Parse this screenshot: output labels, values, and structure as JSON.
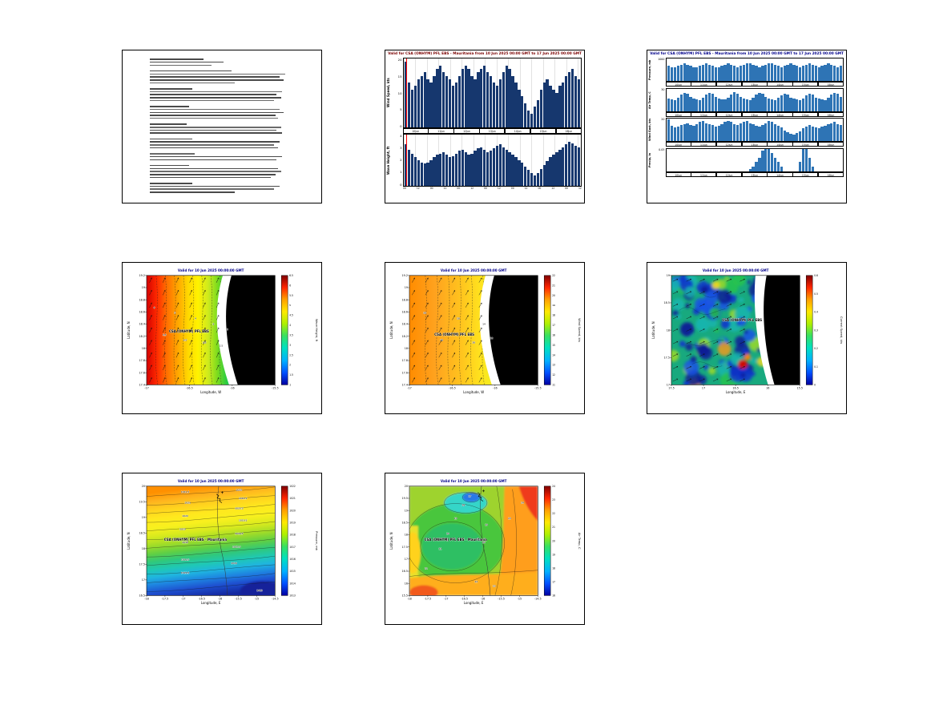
{
  "page": {
    "background": "#ffffff"
  },
  "colors": {
    "timeseries_bar": "#16376e",
    "meteogram_bar": "#2e74b5",
    "time_marker": "#ff0000",
    "map_title": "#00008b",
    "land": "#000000"
  },
  "forecast_text_panel": {
    "text_legible": false,
    "line_count": 46
  },
  "chart_data": [
    {
      "id": "wind-wave-timeseries",
      "type": "bar",
      "title": "Valid for CSA (ONHYM) PFL EBS - Mauritania from 10 Jun 2025 00:00 GMT to 17 Jun 2025 00:00 GMT",
      "dates": [
        "10Jun",
        "11Jun",
        "12Jun",
        "13Jun",
        "14Jun",
        "15Jun",
        "16Jun"
      ],
      "hour_ticks": [
        "00",
        "12",
        "00",
        "12",
        "00",
        "12",
        "00",
        "12",
        "00",
        "12",
        "00",
        "12",
        "00",
        "12"
      ],
      "panels": [
        {
          "ylabel": "Wind Speed, kts",
          "ylim": [
            0,
            20
          ],
          "yticks": [
            "20",
            "15",
            "10",
            "5",
            "0"
          ],
          "values": [
            19,
            13,
            11,
            12,
            14,
            15,
            16,
            14,
            13,
            15,
            17,
            18,
            16,
            15,
            14,
            12,
            13,
            15,
            17,
            18,
            17,
            15,
            14,
            16,
            17,
            18,
            16,
            15,
            13,
            12,
            14,
            16,
            18,
            17,
            15,
            13,
            11,
            9,
            7,
            5,
            4,
            6,
            8,
            11,
            13,
            14,
            12,
            11,
            10,
            12,
            13,
            15,
            16,
            17,
            15,
            14
          ]
        },
        {
          "ylabel": "Wave Height, ft",
          "ylim": [
            0,
            4
          ],
          "yticks": [
            "4",
            "3",
            "2",
            "1",
            "0"
          ],
          "values": [
            3.2,
            2.8,
            2.5,
            2.2,
            2.0,
            1.8,
            1.7,
            1.8,
            2.0,
            2.2,
            2.4,
            2.5,
            2.6,
            2.4,
            2.2,
            2.3,
            2.5,
            2.7,
            2.8,
            2.6,
            2.4,
            2.5,
            2.7,
            2.9,
            3.0,
            2.8,
            2.6,
            2.7,
            2.9,
            3.1,
            3.2,
            3.0,
            2.8,
            2.6,
            2.4,
            2.2,
            2.0,
            1.8,
            1.5,
            1.2,
            1.0,
            0.8,
            1.0,
            1.3,
            1.6,
            1.9,
            2.2,
            2.4,
            2.6,
            2.8,
            3.0,
            3.2,
            3.4,
            3.3,
            3.1,
            3.0
          ]
        }
      ]
    },
    {
      "id": "meteogram",
      "type": "bar",
      "title": "Valid for CSA (ONHYM) PFL EBS - Mauritania from 10 Jun 2025 00:00 GMT to 17 Jun 2025 00:00 GMT",
      "dates": [
        "10Jun",
        "11Jun",
        "12Jun",
        "13Jun",
        "14Jun",
        "15Jun",
        "16Jun"
      ],
      "panels": [
        {
          "ylabel": "Pressure, mb",
          "ylim": [
            1000,
            1018
          ],
          "yticks": [
            "1000"
          ],
          "values": [
            1012,
            1011,
            1011,
            1012,
            1013,
            1014,
            1013,
            1012,
            1011,
            1011,
            1012,
            1013,
            1014,
            1013,
            1012,
            1011,
            1011,
            1012,
            1013,
            1014,
            1013,
            1012,
            1011,
            1012,
            1013,
            1014,
            1014,
            1013,
            1012,
            1011,
            1012,
            1013,
            1014,
            1014,
            1013,
            1012,
            1011,
            1012,
            1013,
            1014,
            1013,
            1012,
            1011,
            1012,
            1013,
            1014,
            1013,
            1012,
            1011,
            1012,
            1013,
            1014,
            1013,
            1012,
            1011,
            1012
          ]
        },
        {
          "ylabel": "Air Temp, C",
          "ylim": [
            10,
            35
          ],
          "yticks": [
            "30"
          ],
          "values": [
            24,
            23,
            22,
            25,
            28,
            30,
            29,
            26,
            24,
            23,
            22,
            25,
            28,
            30,
            29,
            26,
            24,
            23,
            23,
            25,
            28,
            31,
            29,
            26,
            24,
            23,
            22,
            25,
            28,
            30,
            29,
            26,
            24,
            23,
            22,
            25,
            27,
            29,
            28,
            25,
            24,
            23,
            22,
            24,
            27,
            29,
            28,
            25,
            24,
            23,
            22,
            25,
            28,
            30,
            29,
            26
          ]
        },
        {
          "ylabel": "Wind Gust, kts",
          "ylim": [
            0,
            25
          ],
          "yticks": [
            "20"
          ],
          "values": [
            24,
            17,
            15,
            16,
            18,
            19,
            20,
            18,
            17,
            19,
            21,
            22,
            20,
            19,
            18,
            16,
            17,
            19,
            21,
            22,
            21,
            19,
            18,
            20,
            21,
            22,
            20,
            19,
            17,
            16,
            18,
            20,
            22,
            21,
            19,
            17,
            15,
            12,
            10,
            8,
            7,
            9,
            11,
            14,
            16,
            18,
            16,
            15,
            14,
            16,
            17,
            19,
            20,
            21,
            19,
            18
          ]
        },
        {
          "ylabel": "Precip, in",
          "ylim": [
            0,
            0.05
          ],
          "yticks": [
            "0.05"
          ],
          "values": [
            0,
            0,
            0,
            0,
            0,
            0,
            0,
            0,
            0,
            0,
            0,
            0,
            0,
            0,
            0,
            0,
            0,
            0,
            0,
            0,
            0,
            0,
            0,
            0,
            0,
            0,
            0.005,
            0.01,
            0.02,
            0.03,
            0.045,
            0.05,
            0.05,
            0.04,
            0.03,
            0.02,
            0.01,
            0,
            0,
            0,
            0,
            0,
            0.02,
            0.05,
            0.05,
            0.03,
            0.01,
            0,
            0,
            0,
            0,
            0,
            0,
            0,
            0,
            0
          ]
        }
      ]
    },
    {
      "id": "wave-height-map",
      "type": "heatmap",
      "title": "Valid for 10 Jun 2025 00:00:00 GMT",
      "brand": {
        "text": "CSA (ONHYM) PFL EBS",
        "x": 0.33,
        "y": 0.52
      },
      "xlabel": "Longitude, W",
      "ylabel": "Latitude, N",
      "xticks": [
        "-17",
        "-16.5",
        "-16",
        "-15.5"
      ],
      "yticks": [
        "19.2",
        "19",
        "18.8",
        "18.6",
        "18.4",
        "18.2",
        "18",
        "17.8",
        "17.6",
        "17.4"
      ],
      "cblabel": "Wave Height, ft",
      "cbticks": [
        "6.5",
        "6",
        "5.5",
        "5",
        "4.5",
        "4",
        "3.5",
        "3",
        "2.5",
        "2",
        "1.5",
        "1"
      ],
      "range": [
        1,
        6.5
      ],
      "pattern": "wave height decreases from ~6.5 ft offshore (west, red) to ~1 ft near the coast (blue); black area = land",
      "contour_labels": [
        {
          "v": "6",
          "x": 0.06,
          "y": 0.3
        },
        {
          "v": "5.5",
          "x": 0.14,
          "y": 0.55
        },
        {
          "v": "5",
          "x": 0.22,
          "y": 0.35
        },
        {
          "v": "4.5",
          "x": 0.3,
          "y": 0.6
        },
        {
          "v": "4",
          "x": 0.38,
          "y": 0.4
        },
        {
          "v": "3.5",
          "x": 0.45,
          "y": 0.62
        },
        {
          "v": "3",
          "x": 0.52,
          "y": 0.45
        },
        {
          "v": "2.5",
          "x": 0.58,
          "y": 0.65
        },
        {
          "v": "2",
          "x": 0.63,
          "y": 0.5
        }
      ],
      "arrows": {
        "angle": -65,
        "max_x": 0.56
      }
    },
    {
      "id": "wind-speed-map",
      "type": "heatmap",
      "title": "Valid for 10 Jun 2025 00:00:00 GMT",
      "brand": {
        "text": "CSA (ONHYM) PFL EBS",
        "x": 0.35,
        "y": 0.55
      },
      "xlabel": "Longitude, W",
      "ylabel": "Latitude, N",
      "xticks": [
        "-17",
        "-16.5",
        "-16",
        "-15.5"
      ],
      "yticks": [
        "19.2",
        "19",
        "18.8",
        "18.6",
        "18.4",
        "18.2",
        "18",
        "17.8",
        "17.6",
        "17.4"
      ],
      "cblabel": "Wind Speed, kts",
      "cbticks": [
        "22",
        "21",
        "20",
        "19",
        "18",
        "17",
        "16",
        "15",
        "14",
        "13",
        "12",
        "11"
      ],
      "range": [
        11,
        22
      ],
      "pattern": "wind ~20-22 kts offshore (orange) easing to ~11-13 kts at the coast (cyan); black area = land",
      "contour_labels": [
        {
          "v": "20",
          "x": 0.12,
          "y": 0.35
        },
        {
          "v": "19",
          "x": 0.25,
          "y": 0.6
        },
        {
          "v": "18",
          "x": 0.38,
          "y": 0.4
        },
        {
          "v": "16",
          "x": 0.5,
          "y": 0.62
        },
        {
          "v": "14",
          "x": 0.58,
          "y": 0.45
        },
        {
          "v": "12",
          "x": 0.64,
          "y": 0.58
        }
      ],
      "arrows": {
        "angle": -60,
        "max_x": 0.56
      }
    },
    {
      "id": "current-speed-map",
      "type": "heatmap",
      "title": "Valid for 10 Jun 2025 00:00:00 GMT",
      "brand": {
        "text": "CSA (ONHYM) PFL EBS",
        "x": 0.55,
        "y": 0.42
      },
      "xlabel": "Longitude, E",
      "ylabel": "Latitude, N",
      "xticks": [
        "17.5",
        "17",
        "16.5",
        "16",
        "15.5"
      ],
      "yticks": [
        "19",
        "18.5",
        "18",
        "17.5",
        "17"
      ],
      "cblabel": "Current Speed, kts",
      "cbticks": [
        "0.6",
        "0.5",
        "0.4",
        "0.3",
        "0.2",
        "0.1",
        "0"
      ],
      "range": [
        0,
        0.6
      ],
      "pattern": "mottled current field, mostly 0-0.2 kts (blue/green) with ~0.5-0.6 kt hotspots (red) near the coast",
      "contour_labels": [],
      "arrows": {
        "angle": -25,
        "max_x": 0.64
      }
    },
    {
      "id": "pressure-map",
      "type": "heatmap",
      "title": "Valid for 10 Jun 2025 00:00:00 GMT",
      "brand": {
        "text": "CSA (ONHYM) PFL EBS  - Mauritania",
        "x": 0.38,
        "y": 0.5
      },
      "xlabel": "Longitude, E",
      "ylabel": "Latitude, N",
      "xticks": [
        "-18",
        "-17.5",
        "-17",
        "-16.5",
        "-16",
        "-15.5",
        "-15",
        "-14.5"
      ],
      "yticks": [
        "20",
        "19.5",
        "19",
        "18.5",
        "18",
        "17.5",
        "17",
        "16.5"
      ],
      "cblabel": "Pressure, mb",
      "cbticks": [
        "1022",
        "1021",
        "1020",
        "1019",
        "1018",
        "1017",
        "1016",
        "1015",
        "1014",
        "1013"
      ],
      "range": [
        1013,
        1022
      ],
      "pattern": "sea-level pressure bands from ~1022 mb in the north (orange) to ~1013 mb in the southeast (dark blue)",
      "contour_labels": [
        {
          "v": "1021.5",
          "x": 0.3,
          "y": 0.06
        },
        {
          "v": "1022",
          "x": 0.72,
          "y": 0.04
        },
        {
          "v": "1021.5",
          "x": 0.75,
          "y": 0.12
        },
        {
          "v": "1021",
          "x": 0.32,
          "y": 0.16
        },
        {
          "v": "1020.5",
          "x": 0.72,
          "y": 0.21
        },
        {
          "v": "1020",
          "x": 0.3,
          "y": 0.28
        },
        {
          "v": "1019.5",
          "x": 0.75,
          "y": 0.32
        },
        {
          "v": "1019",
          "x": 0.28,
          "y": 0.4
        },
        {
          "v": "1018.5",
          "x": 0.72,
          "y": 0.44
        },
        {
          "v": "1018",
          "x": 0.3,
          "y": 0.52
        },
        {
          "v": "1017.5",
          "x": 0.7,
          "y": 0.56
        },
        {
          "v": "1016.5",
          "x": 0.3,
          "y": 0.68
        },
        {
          "v": "1016",
          "x": 0.68,
          "y": 0.71
        },
        {
          "v": "1015.5",
          "x": 0.3,
          "y": 0.8
        },
        {
          "v": "1013",
          "x": 0.88,
          "y": 0.96
        }
      ]
    },
    {
      "id": "temperature-map",
      "type": "heatmap",
      "title": "Valid for 10 Jun 2025 00:00:00 GMT",
      "brand": {
        "text": "CSA (ONHYM) PFL EBS  - Mauritania",
        "x": 0.36,
        "y": 0.5
      },
      "xlabel": "Longitude, E",
      "ylabel": "Latitude, N",
      "xticks": [
        "-18",
        "-17.5",
        "-17",
        "-16.5",
        "-16",
        "-15.5",
        "-15",
        "-14.5"
      ],
      "yticks": [
        "20",
        "19.5",
        "19",
        "18.5",
        "18",
        "17.5",
        "17",
        "16.5",
        "16",
        "15.5"
      ],
      "cblabel": "Air Temp, C",
      "cbticks": [
        "24",
        "23",
        "22",
        "21",
        "20",
        "19",
        "18",
        "17",
        "16"
      ],
      "range": [
        16,
        24
      ],
      "pattern": "air temperature ~17-18 C in a cool coastal pocket (cyan/blue), ~20-21 C over the center (green), 23-24 C inland east and south (orange/red)",
      "contour_labels": [
        {
          "v": "17",
          "x": 0.47,
          "y": 0.1
        },
        {
          "v": "18",
          "x": 0.42,
          "y": 0.18
        },
        {
          "v": "19",
          "x": 0.36,
          "y": 0.3
        },
        {
          "v": "20",
          "x": 0.3,
          "y": 0.44
        },
        {
          "v": "21",
          "x": 0.24,
          "y": 0.58
        },
        {
          "v": "22",
          "x": 0.13,
          "y": 0.76
        },
        {
          "v": "22",
          "x": 0.52,
          "y": 0.88
        },
        {
          "v": "23",
          "x": 0.66,
          "y": 0.92
        },
        {
          "v": "23",
          "x": 0.78,
          "y": 0.3
        },
        {
          "v": "24",
          "x": 0.88,
          "y": 0.16
        },
        {
          "v": "19",
          "x": 0.6,
          "y": 0.36
        },
        {
          "v": "20",
          "x": 0.58,
          "y": 0.52
        }
      ]
    }
  ]
}
